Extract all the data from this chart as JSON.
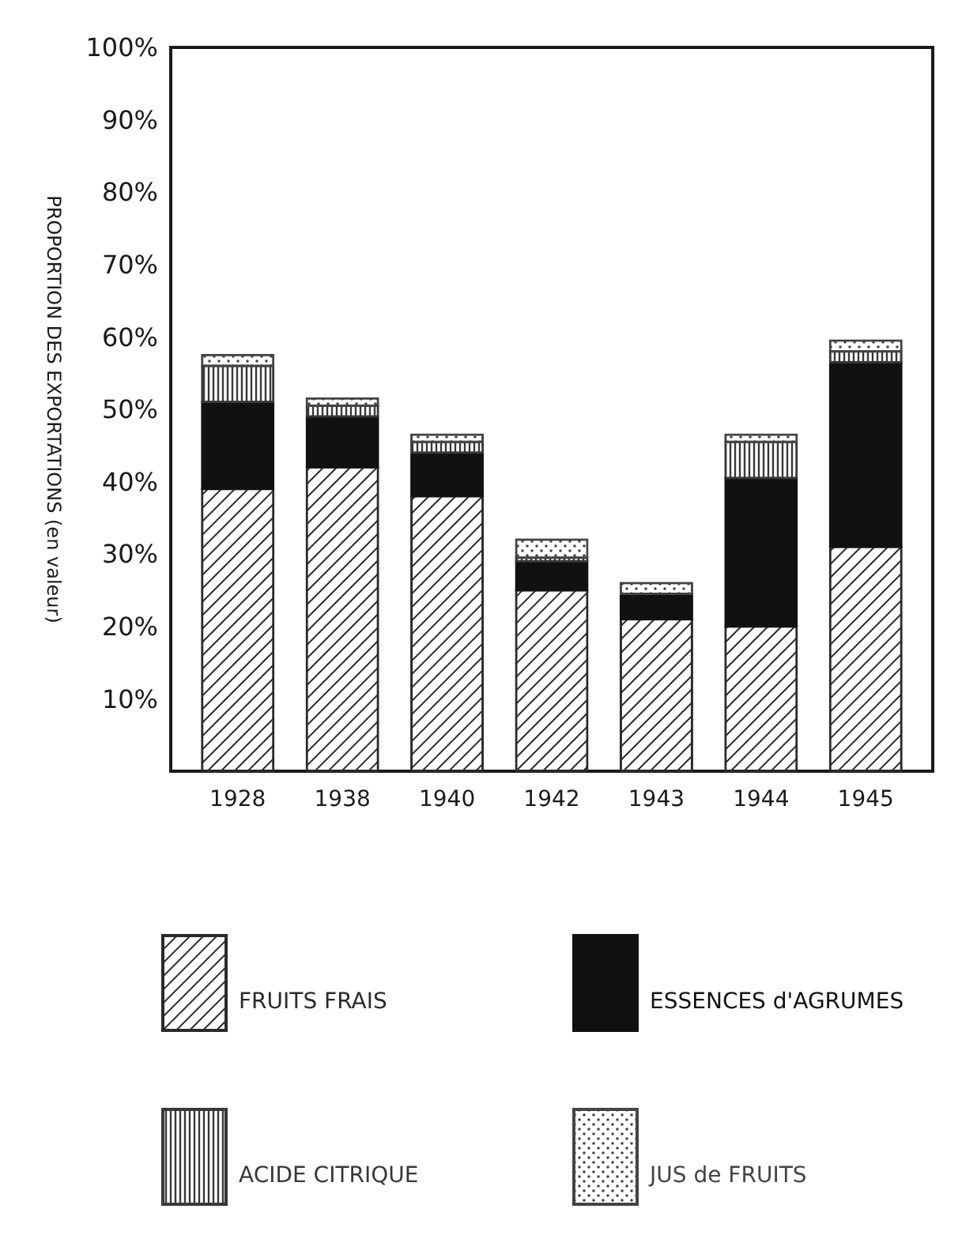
{
  "chart_data": {
    "type": "bar",
    "stacked": true,
    "ylabel": "PROPORTION DES EXPORTATIONS (en valeur)",
    "categories": [
      "1928",
      "1938",
      "1940",
      "1942",
      "1943",
      "1944",
      "1945"
    ],
    "series": [
      {
        "name": "FRUITS FRAIS",
        "color": "#2a2a2a",
        "values": [
          39,
          42,
          38,
          25,
          21,
          20,
          31
        ]
      },
      {
        "name": "ESSENCES d'AGRUMES",
        "color": "#111111",
        "values": [
          12,
          7,
          6,
          4,
          3.5,
          20.5,
          25.5
        ]
      },
      {
        "name": "ACIDE CITRIQUE",
        "color": "#383838",
        "values": [
          5,
          1.5,
          1.5,
          0.5,
          0,
          5,
          1.5
        ]
      },
      {
        "name": "JUS de FRUITS",
        "color": "#444444",
        "values": [
          1.5,
          1,
          1,
          2.5,
          1.5,
          1,
          1.5
        ]
      }
    ],
    "ylim": [
      0,
      100
    ],
    "yticks": [
      {
        "value": 10,
        "label": "10%"
      },
      {
        "value": 20,
        "label": "20%"
      },
      {
        "value": 30,
        "label": "30%"
      },
      {
        "value": 40,
        "label": "40%"
      },
      {
        "value": 50,
        "label": "50%"
      },
      {
        "value": 60,
        "label": "60%"
      },
      {
        "value": 70,
        "label": "70%"
      },
      {
        "value": 80,
        "label": "80%"
      },
      {
        "value": 90,
        "label": "90%"
      },
      {
        "value": 100,
        "label": "100%"
      }
    ],
    "grid": false,
    "legend": "bottom"
  }
}
